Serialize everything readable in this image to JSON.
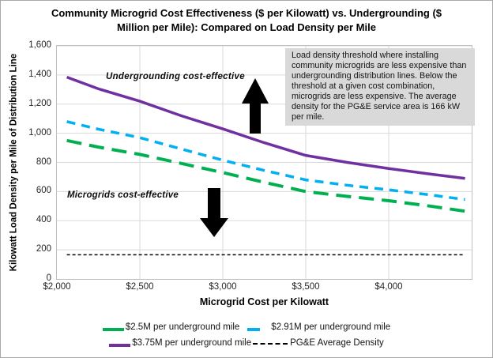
{
  "title": "Community Microgrid Cost Effectiveness ($ per Kilowatt) vs. Undergrounding ($ Million per Mile): Compared on Load Density per Mile",
  "x_axis": {
    "title": "Microgrid Cost per Kilowatt",
    "tick_labels": [
      "$2,000",
      "$2,500",
      "$3,000",
      "$3,500",
      "$4,000"
    ],
    "tick_values": [
      2000,
      2500,
      3000,
      3500,
      4000
    ]
  },
  "y_axis": {
    "title": "Kilowatt Load Density per Mile of Distribution Line",
    "tick_labels": [
      "1,600",
      "1,400",
      "1,200",
      "1,000",
      "800",
      "600",
      "400",
      "200",
      "0"
    ],
    "tick_values": [
      1600,
      1400,
      1200,
      1000,
      800,
      600,
      400,
      200,
      0
    ]
  },
  "annotations": {
    "undergrounding_label": "Undergrounding cost-effective",
    "microgrids_label": "Microgrids cost-effective",
    "note_box": "Load density threshold where installing community microgrids are less expensive than undergrounding distribution lines. Below the threshold at a given cost combination, microgrids are less expensive. The average density for the PG&E service area is 166 kW per mile."
  },
  "legend": {
    "items": [
      {
        "label": "$2.5M per underground mile",
        "series": 0
      },
      {
        "label": "$2.91M per underground mile",
        "series": 1
      },
      {
        "label": "$3.75M per underground mile",
        "series": 2
      },
      {
        "label": "PG&E Average Density",
        "series": 3
      }
    ]
  },
  "colors": {
    "grid": "#D9D9D9",
    "plot_border": "#BFBFBF",
    "note_box_background": "#D9D9D9",
    "arrow": "#000000",
    "green_series": "#00B050",
    "blue_series": "#00B0F0",
    "purple_series": "#7030A0"
  },
  "chart_data": {
    "type": "line",
    "title": "Community Microgrid Cost Effectiveness ($ per Kilowatt) vs. Undergrounding ($ Million per Mile): Compared on Load Density per Mile",
    "xlabel": "Microgrid Cost per Kilowatt",
    "ylabel": "Kilowatt Load Density per Mile of Distribution Line",
    "xlim": [
      2000,
      4500
    ],
    "ylim": [
      0,
      1600
    ],
    "x_tick_step": 500,
    "y_tick_step": 200,
    "grid": true,
    "legend_position": "bottom",
    "x": [
      2060,
      2250,
      2500,
      2750,
      3000,
      3250,
      3500,
      3750,
      4000,
      4250,
      4460
    ],
    "series": [
      {
        "name": "$2.5M per underground mile",
        "color": "#00B050",
        "style": "long-dash",
        "values": [
          950,
          905,
          855,
          793,
          730,
          663,
          600,
          567,
          537,
          500,
          465
        ]
      },
      {
        "name": "$2.91M per underground mile",
        "color": "#00B0F0",
        "style": "short-dash",
        "values": [
          1080,
          1028,
          970,
          892,
          815,
          745,
          680,
          643,
          612,
          577,
          545
        ]
      },
      {
        "name": "$3.75M per underground mile",
        "color": "#7030A0",
        "style": "solid",
        "values": [
          1385,
          1305,
          1220,
          1120,
          1030,
          935,
          848,
          800,
          758,
          720,
          690
        ]
      },
      {
        "name": "PG&E Average Density",
        "color": "#000000",
        "style": "fine-dash",
        "constant": 166
      }
    ],
    "annotations": {
      "upper_region": "Undergrounding cost-effective",
      "lower_region": "Microgrids cost-effective",
      "pge_average_density_kw_per_mile": 166
    }
  }
}
